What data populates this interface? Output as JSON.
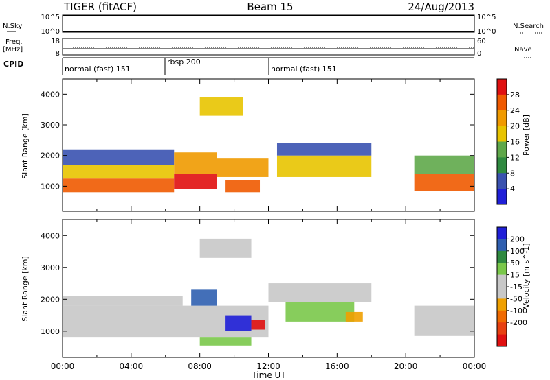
{
  "header": {
    "station": "TIGER (fitACF)",
    "beam": "Beam 15",
    "date": "24/Aug/2013"
  },
  "panels": {
    "nsky": {
      "label": "N.Sky",
      "right_label": "N.Search",
      "ticks": [
        "10^5",
        "10^0"
      ]
    },
    "freq": {
      "label_line1": "Freq.",
      "label_line2": "[MHz]",
      "ticks": [
        "18",
        "8"
      ],
      "right_ticks": [
        "60",
        "0"
      ],
      "right_label": "Nave"
    },
    "cpid": {
      "label": "CPID",
      "segments": [
        "normal (fast) 151",
        "rbsp 200",
        "normal (fast) 151"
      ]
    }
  },
  "colors": {
    "power": [
      "#1f1fd8",
      "#3a52b0",
      "#2f8a40",
      "#5fa84a",
      "#e8c400",
      "#f09a00",
      "#f05a00",
      "#e01010"
    ],
    "velocity": [
      "#1f1fd8",
      "#2f5fb0",
      "#2f8a40",
      "#7ac84a",
      "#c8c8c8",
      "#c8c8c8",
      "#f0a000",
      "#f06a00",
      "#e84010",
      "#e01010"
    ]
  },
  "chart_data": [
    {
      "type": "heatmap",
      "name": "power",
      "xlabel": "",
      "ylabel": "Slant Range [km]",
      "xlim": [
        0,
        24
      ],
      "ylim": [
        180,
        4500
      ],
      "yticks": [
        "1000",
        "2000",
        "3000",
        "4000"
      ],
      "colorbar": {
        "label": "Power [dB]",
        "ticks": [
          "4",
          "8",
          "12",
          "16",
          "20",
          "24",
          "28"
        ],
        "range": [
          0,
          30
        ]
      },
      "bands": [
        {
          "t0": 0.0,
          "t1": 6.5,
          "r0": 800,
          "r1": 1250,
          "v": 26
        },
        {
          "t0": 0.0,
          "t1": 6.5,
          "r0": 1250,
          "r1": 1700,
          "v": 18
        },
        {
          "t0": 0.0,
          "t1": 6.5,
          "r0": 1700,
          "r1": 2200,
          "v": 7
        },
        {
          "t0": 6.5,
          "t1": 9.0,
          "r0": 900,
          "r1": 1400,
          "v": 27
        },
        {
          "t0": 6.5,
          "t1": 9.0,
          "r0": 1400,
          "r1": 2100,
          "v": 20
        },
        {
          "t0": 9.0,
          "t1": 12.0,
          "r0": 1300,
          "r1": 1900,
          "v": 22
        },
        {
          "t0": 9.5,
          "t1": 11.5,
          "r0": 800,
          "r1": 1200,
          "v": 25
        },
        {
          "t0": 8.0,
          "t1": 10.5,
          "r0": 3300,
          "r1": 3900,
          "v": 16
        },
        {
          "t0": 12.5,
          "t1": 18.0,
          "r0": 1300,
          "r1": 2000,
          "v": 16
        },
        {
          "t0": 12.5,
          "t1": 18.0,
          "r0": 2000,
          "r1": 2400,
          "v": 6
        },
        {
          "t0": 20.5,
          "t1": 24.0,
          "r0": 850,
          "r1": 1400,
          "v": 24
        },
        {
          "t0": 20.5,
          "t1": 24.0,
          "r0": 1400,
          "r1": 2000,
          "v": 12
        }
      ]
    },
    {
      "type": "heatmap",
      "name": "velocity",
      "xlabel": "Time UT",
      "ylabel": "Slant Range [km]",
      "xlim": [
        0,
        24
      ],
      "ylim": [
        180,
        4500
      ],
      "xticks": [
        "00:00",
        "04:00",
        "08:00",
        "12:00",
        "16:00",
        "20:00",
        "00:00"
      ],
      "yticks": [
        "1000",
        "2000",
        "3000",
        "4000"
      ],
      "colorbar": {
        "label": "Velocity [m s^-1]",
        "ticks": [
          "200",
          "100",
          "50",
          "15",
          "-15",
          "-50",
          "-100",
          "-200"
        ],
        "range": [
          -250,
          250
        ]
      },
      "bands": [
        {
          "t0": 0.0,
          "t1": 12.0,
          "r0": 800,
          "r1": 1800,
          "v": 0
        },
        {
          "t0": 0.0,
          "t1": 7.0,
          "r0": 1800,
          "r1": 2100,
          "v": -40
        },
        {
          "t0": 7.5,
          "t1": 9.0,
          "r0": 1800,
          "r1": 2300,
          "v": 180
        },
        {
          "t0": 9.5,
          "t1": 11.0,
          "r0": 1000,
          "r1": 1500,
          "v": 220
        },
        {
          "t0": 11.0,
          "t1": 11.8,
          "r0": 1050,
          "r1": 1350,
          "v": -200
        },
        {
          "t0": 8.0,
          "t1": 11.0,
          "r0": 550,
          "r1": 800,
          "v": 60
        },
        {
          "t0": 8.0,
          "t1": 11.0,
          "r0": 3300,
          "r1": 3900,
          "v": -40
        },
        {
          "t0": 12.0,
          "t1": 18.0,
          "r0": 1900,
          "r1": 2500,
          "v": 0
        },
        {
          "t0": 13.0,
          "t1": 17.0,
          "r0": 1300,
          "r1": 1900,
          "v": 70
        },
        {
          "t0": 16.5,
          "t1": 17.5,
          "r0": 1300,
          "r1": 1600,
          "v": -60
        },
        {
          "t0": 20.5,
          "t1": 24.0,
          "r0": 850,
          "r1": 1800,
          "v": 0
        }
      ]
    }
  ]
}
